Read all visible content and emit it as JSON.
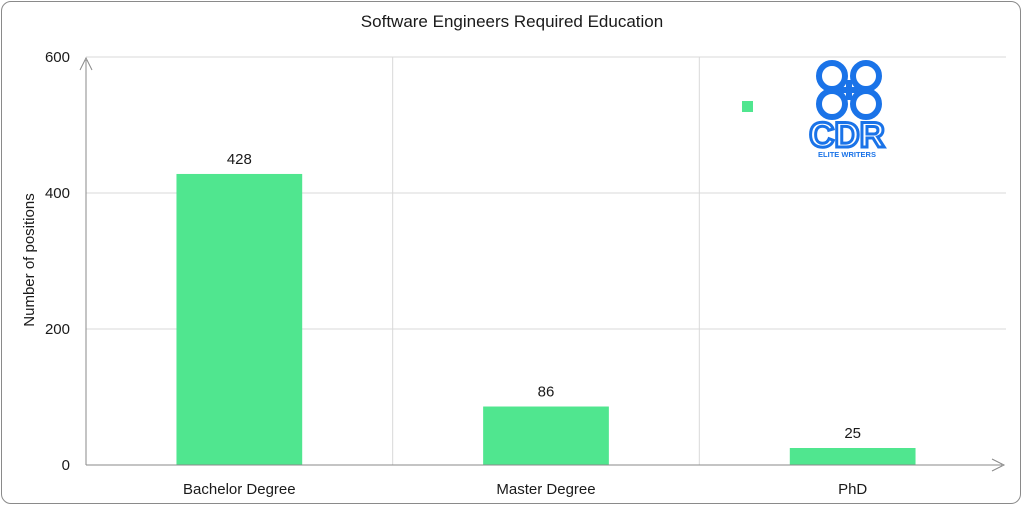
{
  "chart_data": {
    "type": "bar",
    "title": "Software Engineers Required Education",
    "xlabel": "",
    "ylabel": "Number of positions",
    "categories": [
      "Bachelor Degree",
      "Master Degree",
      "PhD"
    ],
    "values": [
      428,
      86,
      25
    ],
    "data_labels": [
      "428",
      "86",
      "25"
    ],
    "ylim": [
      0,
      600
    ],
    "yticks": [
      0,
      200,
      400,
      600
    ],
    "grid": true,
    "legend": "top-right",
    "bar_color": "#50e68f"
  },
  "logo": {
    "text": "CDR",
    "subtext": "ELITE WRITERS",
    "color": "#1a73e8"
  }
}
